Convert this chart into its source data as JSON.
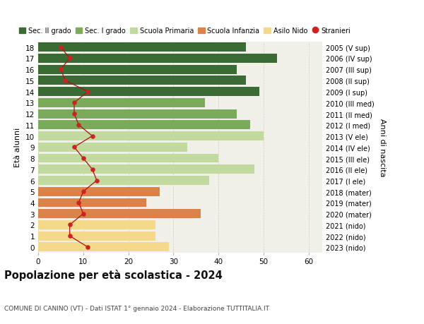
{
  "ages": [
    18,
    17,
    16,
    15,
    14,
    13,
    12,
    11,
    10,
    9,
    8,
    7,
    6,
    5,
    4,
    3,
    2,
    1,
    0
  ],
  "bar_values": [
    46,
    53,
    44,
    46,
    49,
    37,
    44,
    47,
    50,
    33,
    40,
    48,
    38,
    27,
    24,
    36,
    26,
    26,
    29
  ],
  "bar_colors": [
    "#3a6b35",
    "#3a6b35",
    "#3a6b35",
    "#3a6b35",
    "#3a6b35",
    "#7aab5a",
    "#7aab5a",
    "#7aab5a",
    "#c2d9a0",
    "#c2d9a0",
    "#c2d9a0",
    "#c2d9a0",
    "#c2d9a0",
    "#d9824a",
    "#d9824a",
    "#d9824a",
    "#f5d98a",
    "#f5d98a",
    "#f5d98a"
  ],
  "stranieri_values": [
    5,
    7,
    5,
    6,
    11,
    8,
    8,
    9,
    12,
    8,
    10,
    12,
    13,
    10,
    9,
    10,
    7,
    7,
    11
  ],
  "right_labels": [
    "2005 (V sup)",
    "2006 (IV sup)",
    "2007 (III sup)",
    "2008 (II sup)",
    "2009 (I sup)",
    "2010 (III med)",
    "2011 (II med)",
    "2012 (I med)",
    "2013 (V ele)",
    "2014 (IV ele)",
    "2015 (III ele)",
    "2016 (II ele)",
    "2017 (I ele)",
    "2018 (mater)",
    "2019 (mater)",
    "2020 (mater)",
    "2021 (nido)",
    "2022 (nido)",
    "2023 (nido)"
  ],
  "legend_labels": [
    "Sec. II grado",
    "Sec. I grado",
    "Scuola Primaria",
    "Scuola Infanzia",
    "Asilo Nido",
    "Stranieri"
  ],
  "legend_colors": [
    "#3a6b35",
    "#7aab5a",
    "#c2d9a0",
    "#d9824a",
    "#f5d98a",
    "#cc2222"
  ],
  "ylabel_left": "Età alunni",
  "ylabel_right": "Anni di nascita",
  "title": "Popolazione per età scolastica - 2024",
  "subtitle": "COMUNE DI CANINO (VT) - Dati ISTAT 1° gennaio 2024 - Elaborazione TUTTITALIA.IT",
  "xlim": [
    0,
    63
  ],
  "xticks": [
    0,
    10,
    20,
    30,
    40,
    50,
    60
  ],
  "background_color": "#ffffff",
  "bar_background": "#f0f0e8"
}
